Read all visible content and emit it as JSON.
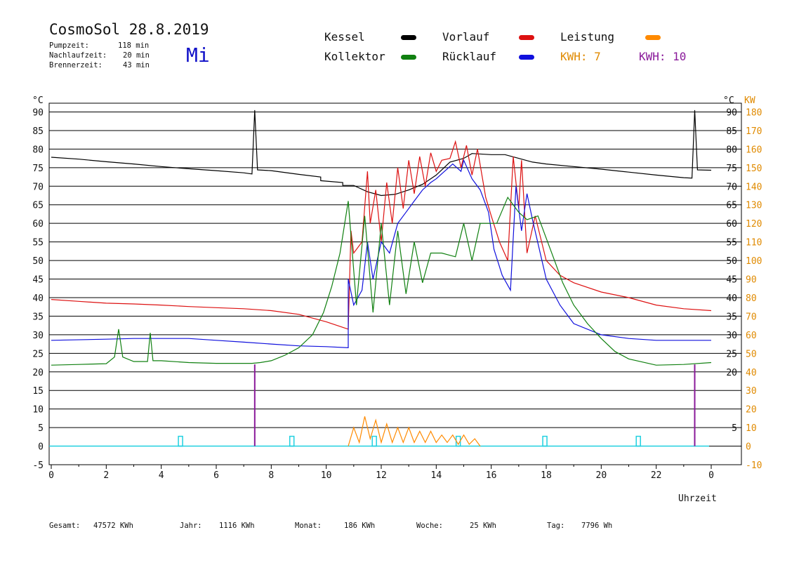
{
  "header": {
    "title": "CosmoSol 28.8.2019",
    "stats": [
      {
        "label": "Pumpzeit:",
        "value": "118 min"
      },
      {
        "label": "Nachlaufzeit:",
        "value": "20 min"
      },
      {
        "label": "Brennerzeit:",
        "value": "43 min"
      }
    ],
    "day": "Mi"
  },
  "legend": {
    "kessel": {
      "label": "Kessel",
      "color": "#000000"
    },
    "vorlauf": {
      "label": "Vorlauf",
      "color": "#dd1111"
    },
    "leistung": {
      "label": "Leistung",
      "color": "#ff8a00"
    },
    "kollektor": {
      "label": "Kollektor",
      "color": "#108010"
    },
    "ruecklauf": {
      "label": "Rücklauf",
      "color": "#1010dd"
    },
    "kwh_orange": {
      "label": "KWH: 7",
      "color": "#e08a00"
    },
    "kwh_purple": {
      "label": "KWH: 10",
      "color": "#8a1a9a"
    }
  },
  "footer": {
    "gesamt": {
      "label": "Gesamt:",
      "value": "47572 KWh"
    },
    "jahr": {
      "label": "Jahr:",
      "value": "1116 KWh"
    },
    "monat": {
      "label": "Monat:",
      "value": "186 KWh"
    },
    "woche": {
      "label": "Woche:",
      "value": "25 KWh"
    },
    "tag": {
      "label": "Tag:",
      "value": "7796 Wh"
    }
  },
  "chart_data": {
    "type": "line",
    "xlabel": "Uhrzeit",
    "ylabel_left": "°C",
    "ylabel_right_unit": "°C",
    "ylabel_right_kw": "KW",
    "xlim": [
      0,
      24
    ],
    "ylim_left": [
      -5,
      95
    ],
    "ylim_right": [
      -10,
      190
    ],
    "x_ticks": [
      "0",
      "2",
      "4",
      "6",
      "8",
      "10",
      "12",
      "14",
      "16",
      "18",
      "20",
      "22",
      "0"
    ],
    "y_ticks_left": [
      "-5",
      "0",
      "5",
      "10",
      "15",
      "20",
      "25",
      "30",
      "35",
      "40",
      "45",
      "50",
      "55",
      "60",
      "65",
      "70",
      "75",
      "80",
      "85",
      "90"
    ],
    "y_ticks_right_c": [
      "20",
      "25",
      "30",
      "35",
      "40",
      "45",
      "50",
      "55",
      "60",
      "65",
      "70",
      "75",
      "80",
      "85",
      "90"
    ],
    "y_ticks_right_kw": [
      "-10",
      "0",
      "10",
      "20",
      "30",
      "40",
      "50",
      "60",
      "70",
      "80",
      "90",
      "100",
      "110",
      "120",
      "130",
      "140",
      "150",
      "160",
      "170",
      "180"
    ],
    "grid": true,
    "series": [
      {
        "name": "Kessel",
        "color": "#000000",
        "points": [
          [
            0,
            77.8
          ],
          [
            1,
            77.3
          ],
          [
            2,
            76.6
          ],
          [
            3,
            76
          ],
          [
            4,
            75.3
          ],
          [
            5,
            74.7
          ],
          [
            6,
            74.2
          ],
          [
            7,
            73.6
          ],
          [
            7.3,
            73.3
          ],
          [
            7.4,
            90.5
          ],
          [
            7.5,
            74.4
          ],
          [
            8,
            74.2
          ],
          [
            9,
            73.2
          ],
          [
            9.8,
            72.5
          ],
          [
            9.8,
            71.5
          ],
          [
            10.6,
            71
          ],
          [
            10.6,
            70.2
          ],
          [
            11,
            70.2
          ],
          [
            11.5,
            68.5
          ],
          [
            12,
            67.5
          ],
          [
            12.5,
            67.8
          ],
          [
            13,
            69
          ],
          [
            13.5,
            70.5
          ],
          [
            14,
            73
          ],
          [
            14.5,
            76.5
          ],
          [
            15,
            77.5
          ],
          [
            15.3,
            78.8
          ],
          [
            16,
            78.5
          ],
          [
            16.5,
            78.5
          ],
          [
            17,
            77.5
          ],
          [
            17.5,
            76.5
          ],
          [
            18,
            76
          ],
          [
            19,
            75.3
          ],
          [
            20,
            74.6
          ],
          [
            21,
            73.8
          ],
          [
            22,
            73
          ],
          [
            23,
            72.3
          ],
          [
            23.3,
            72.2
          ],
          [
            23.4,
            90.5
          ],
          [
            23.5,
            74.4
          ],
          [
            24,
            74.3
          ]
        ]
      },
      {
        "name": "Vorlauf",
        "color": "#dd1111",
        "points": [
          [
            0,
            39.5
          ],
          [
            1,
            39
          ],
          [
            2,
            38.5
          ],
          [
            3,
            38.3
          ],
          [
            4,
            38
          ],
          [
            5,
            37.6
          ],
          [
            6,
            37.3
          ],
          [
            7,
            37
          ],
          [
            8,
            36.5
          ],
          [
            9,
            35.5
          ],
          [
            10,
            33.5
          ],
          [
            10.8,
            31.5
          ],
          [
            10.9,
            58
          ],
          [
            11,
            52
          ],
          [
            11.3,
            55
          ],
          [
            11.5,
            74
          ],
          [
            11.6,
            60
          ],
          [
            11.8,
            69
          ],
          [
            12,
            55
          ],
          [
            12.2,
            71
          ],
          [
            12.4,
            60
          ],
          [
            12.6,
            75
          ],
          [
            12.8,
            64
          ],
          [
            13,
            77
          ],
          [
            13.2,
            68
          ],
          [
            13.4,
            78
          ],
          [
            13.6,
            70
          ],
          [
            13.8,
            79
          ],
          [
            14,
            74
          ],
          [
            14.2,
            77
          ],
          [
            14.5,
            77.5
          ],
          [
            14.7,
            82
          ],
          [
            14.9,
            75
          ],
          [
            15.1,
            81
          ],
          [
            15.3,
            73
          ],
          [
            15.5,
            80
          ],
          [
            15.8,
            67
          ],
          [
            16,
            62
          ],
          [
            16.3,
            55
          ],
          [
            16.6,
            50
          ],
          [
            16.8,
            78
          ],
          [
            17,
            64
          ],
          [
            17.1,
            77
          ],
          [
            17.3,
            52
          ],
          [
            17.6,
            62
          ],
          [
            18,
            50
          ],
          [
            18.5,
            46
          ],
          [
            19,
            44
          ],
          [
            20,
            41.5
          ],
          [
            21,
            40
          ],
          [
            22,
            38
          ],
          [
            23,
            37
          ],
          [
            24,
            36.5
          ]
        ]
      },
      {
        "name": "Rücklauf",
        "color": "#1010dd",
        "points": [
          [
            0,
            28.5
          ],
          [
            2,
            28.8
          ],
          [
            3,
            29
          ],
          [
            4,
            29
          ],
          [
            5,
            29
          ],
          [
            6,
            28.5
          ],
          [
            7,
            28
          ],
          [
            8,
            27.5
          ],
          [
            9,
            27
          ],
          [
            10,
            26.8
          ],
          [
            10.8,
            26.5
          ],
          [
            10.8,
            45
          ],
          [
            11,
            38
          ],
          [
            11.3,
            42
          ],
          [
            11.5,
            55
          ],
          [
            11.7,
            45
          ],
          [
            12,
            55
          ],
          [
            12.3,
            52
          ],
          [
            12.6,
            60
          ],
          [
            12.9,
            63
          ],
          [
            13.2,
            66
          ],
          [
            13.5,
            69
          ],
          [
            13.8,
            71
          ],
          [
            14,
            72
          ],
          [
            14.3,
            74
          ],
          [
            14.6,
            76
          ],
          [
            14.9,
            74
          ],
          [
            15,
            77
          ],
          [
            15.3,
            72
          ],
          [
            15.6,
            69
          ],
          [
            15.9,
            63
          ],
          [
            16.1,
            53
          ],
          [
            16.4,
            46
          ],
          [
            16.7,
            42
          ],
          [
            16.9,
            70
          ],
          [
            17.1,
            58
          ],
          [
            17.3,
            68
          ],
          [
            17.5,
            61
          ],
          [
            18,
            45
          ],
          [
            18.5,
            38
          ],
          [
            19,
            33
          ],
          [
            20,
            30
          ],
          [
            21,
            29
          ],
          [
            22,
            28.5
          ],
          [
            23,
            28.5
          ],
          [
            24,
            28.5
          ]
        ]
      },
      {
        "name": "Kollektor",
        "color": "#108010",
        "points": [
          [
            0,
            21.8
          ],
          [
            1,
            22
          ],
          [
            2,
            22.2
          ],
          [
            2.3,
            24
          ],
          [
            2.45,
            31.5
          ],
          [
            2.6,
            24
          ],
          [
            3,
            22.8
          ],
          [
            3.5,
            22.8
          ],
          [
            3.6,
            30.5
          ],
          [
            3.7,
            23
          ],
          [
            4,
            23
          ],
          [
            5,
            22.5
          ],
          [
            6,
            22.3
          ],
          [
            7.3,
            22.3
          ],
          [
            7.6,
            22.5
          ],
          [
            8,
            23
          ],
          [
            8.5,
            24.5
          ],
          [
            9,
            26.5
          ],
          [
            9.5,
            30
          ],
          [
            9.9,
            36
          ],
          [
            10.2,
            43
          ],
          [
            10.5,
            52
          ],
          [
            10.8,
            66
          ],
          [
            11.1,
            38
          ],
          [
            11.4,
            62
          ],
          [
            11.7,
            36
          ],
          [
            12,
            60
          ],
          [
            12.3,
            38
          ],
          [
            12.6,
            58
          ],
          [
            12.9,
            41
          ],
          [
            13.2,
            55
          ],
          [
            13.5,
            44
          ],
          [
            13.8,
            52
          ],
          [
            14.2,
            52
          ],
          [
            14.7,
            51
          ],
          [
            15,
            60
          ],
          [
            15.3,
            50
          ],
          [
            15.6,
            60
          ],
          [
            15.9,
            60
          ],
          [
            16.2,
            60
          ],
          [
            16.6,
            67
          ],
          [
            17,
            63
          ],
          [
            17.3,
            61
          ],
          [
            17.7,
            62
          ],
          [
            18,
            56
          ],
          [
            18.3,
            50
          ],
          [
            18.6,
            44
          ],
          [
            19,
            38
          ],
          [
            19.5,
            33
          ],
          [
            20,
            29
          ],
          [
            20.5,
            25.5
          ],
          [
            21,
            23.5
          ],
          [
            22,
            21.8
          ],
          [
            23,
            22
          ],
          [
            24,
            22.5
          ]
        ]
      },
      {
        "name": "Leistung",
        "color": "#ff8a00",
        "points": [
          [
            10.8,
            0
          ],
          [
            11,
            5
          ],
          [
            11.2,
            1
          ],
          [
            11.4,
            8
          ],
          [
            11.6,
            2
          ],
          [
            11.8,
            7
          ],
          [
            12,
            1
          ],
          [
            12.2,
            6
          ],
          [
            12.4,
            1
          ],
          [
            12.6,
            5
          ],
          [
            12.8,
            1
          ],
          [
            13,
            5
          ],
          [
            13.2,
            1
          ],
          [
            13.4,
            4
          ],
          [
            13.6,
            1
          ],
          [
            13.8,
            4
          ],
          [
            14,
            1
          ],
          [
            14.2,
            3
          ],
          [
            14.4,
            1
          ],
          [
            14.6,
            3
          ],
          [
            14.8,
            0.5
          ],
          [
            15,
            3
          ],
          [
            15.2,
            0.5
          ],
          [
            15.4,
            2
          ],
          [
            15.6,
            0
          ]
        ]
      }
    ]
  }
}
